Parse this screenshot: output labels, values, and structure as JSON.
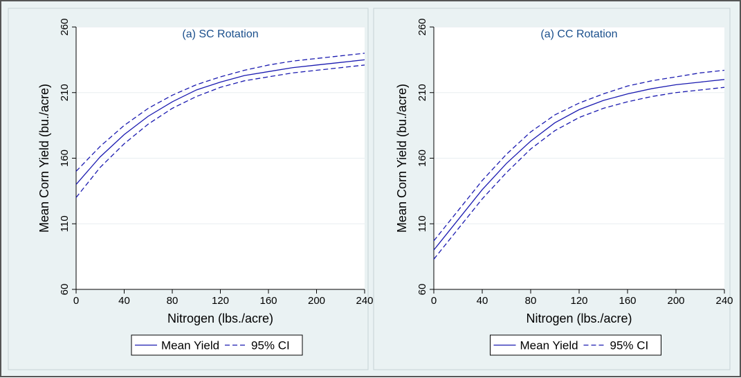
{
  "colors": {
    "background": "#eaf2f3",
    "plot_background": "#ffffff",
    "line": "#1a1ab0",
    "grid": "#e8eef0",
    "title": "#1a4f8c"
  },
  "chart_data": [
    {
      "type": "line",
      "title": "(a) SC Rotation",
      "xlabel": "Nitrogen (lbs./acre)",
      "ylabel": "Mean Corn Yield (bu./acre)",
      "xlim": [
        0,
        240
      ],
      "ylim": [
        60,
        260
      ],
      "xticks": [
        0,
        40,
        80,
        120,
        160,
        200,
        240
      ],
      "yticks": [
        60,
        110,
        160,
        210,
        260
      ],
      "grid": true,
      "legend_position": "bottom",
      "x": [
        0,
        20,
        40,
        60,
        80,
        100,
        120,
        140,
        160,
        180,
        200,
        220,
        240
      ],
      "series": [
        {
          "name": "Mean Yield",
          "style": "solid",
          "values": [
            140,
            161,
            178,
            192,
            203,
            212,
            218,
            223,
            226,
            229,
            231,
            233,
            235
          ]
        },
        {
          "name": "95% CI",
          "style": "dashed",
          "values": [
            150,
            169,
            185,
            198,
            208,
            216,
            222,
            227,
            231,
            234,
            236,
            238,
            240
          ]
        },
        {
          "name": "95% CI",
          "style": "dashed",
          "values": [
            130,
            153,
            171,
            186,
            198,
            207,
            214,
            219,
            222,
            225,
            227,
            229,
            231
          ],
          "legend": false
        }
      ]
    },
    {
      "type": "line",
      "title": "(a) CC Rotation",
      "xlabel": "Nitrogen (lbs./acre)",
      "ylabel": "Mean Corn Yield (bu./acre)",
      "xlim": [
        0,
        240
      ],
      "ylim": [
        60,
        260
      ],
      "xticks": [
        0,
        40,
        80,
        120,
        160,
        200,
        240
      ],
      "yticks": [
        60,
        110,
        160,
        210,
        260
      ],
      "grid": true,
      "legend_position": "bottom",
      "x": [
        0,
        20,
        40,
        60,
        80,
        100,
        120,
        140,
        160,
        180,
        200,
        220,
        240
      ],
      "series": [
        {
          "name": "Mean Yield",
          "style": "solid",
          "values": [
            90,
            113,
            136,
            156,
            173,
            187,
            197,
            204,
            209,
            213,
            216,
            218,
            220
          ]
        },
        {
          "name": "95% CI",
          "style": "dashed",
          "values": [
            97,
            120,
            143,
            163,
            180,
            193,
            202,
            209,
            215,
            219,
            222,
            225,
            227
          ]
        },
        {
          "name": "95% CI",
          "style": "dashed",
          "values": [
            83,
            106,
            129,
            149,
            167,
            181,
            191,
            198,
            203,
            207,
            210,
            212,
            214
          ],
          "legend": false
        }
      ]
    }
  ]
}
